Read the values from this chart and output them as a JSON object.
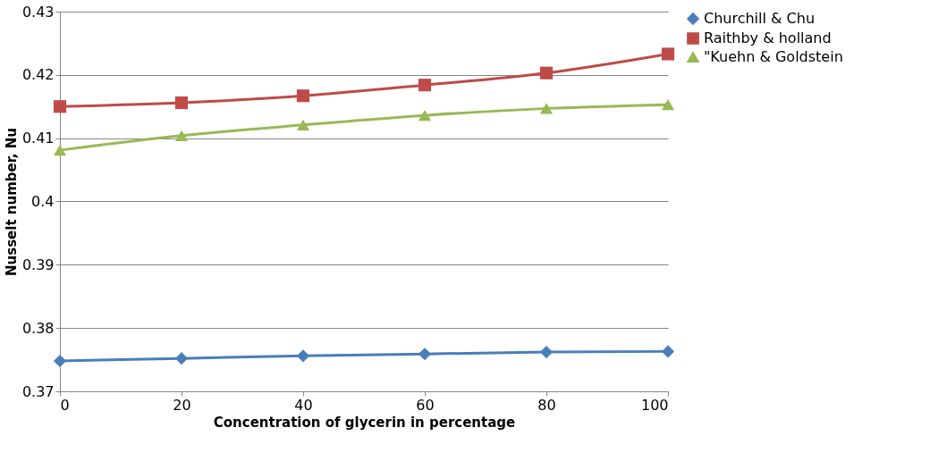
{
  "chart_data": {
    "type": "line",
    "xlabel": "Concentration of glycerin in percentage",
    "ylabel": "Nusselt number, Nu",
    "x": [
      0,
      20,
      40,
      60,
      80,
      100
    ],
    "series": [
      {
        "name": "Churchill & Chu",
        "color": "#4a7ebb",
        "marker": "diamond",
        "values": [
          0.3748,
          0.3752,
          0.3756,
          0.3759,
          0.3762,
          0.3763
        ]
      },
      {
        "name": "Raithby & holland",
        "color": "#be4b48",
        "marker": "square",
        "values": [
          0.415,
          0.4156,
          0.4167,
          0.4184,
          0.4203,
          0.4233
        ]
      },
      {
        "name": "\"Kuehn & Goldstein",
        "color": "#98b954",
        "marker": "triangle",
        "values": [
          0.4081,
          0.4104,
          0.4121,
          0.4136,
          0.4147,
          0.4153
        ]
      }
    ],
    "xlim": [
      0,
      100
    ],
    "xticks": [
      0,
      20,
      40,
      60,
      80,
      100
    ],
    "ylim": [
      0.37,
      0.43
    ],
    "yticks": [
      0.37,
      0.38,
      0.39,
      0.4,
      0.41,
      0.42,
      0.43
    ],
    "grid": "y",
    "legend": "right",
    "line_style": "solid"
  }
}
